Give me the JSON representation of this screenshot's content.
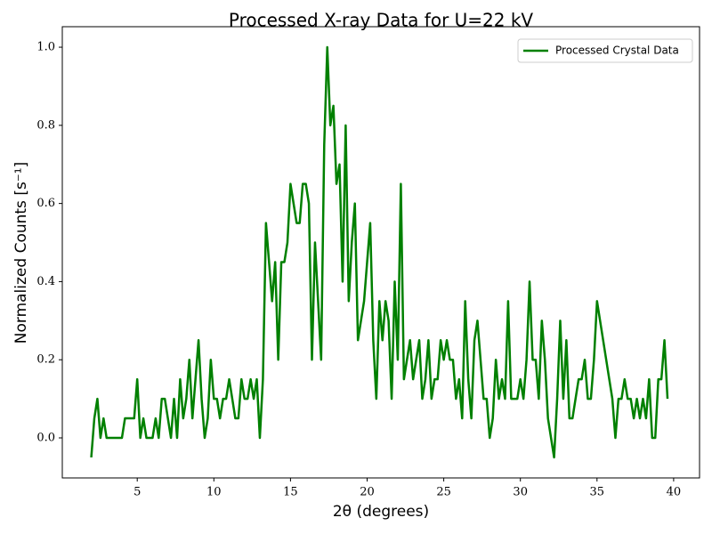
{
  "chart_data": {
    "type": "line",
    "title": "Processed X-ray Data for U=22 kV",
    "x_label": "2θ (degrees)",
    "y_label": "Normalized Counts [s⁻¹]",
    "legend": "upper right",
    "x": [
      2,
      2.2,
      2.4,
      2.6,
      2.8,
      3,
      3.2,
      3.4,
      3.6,
      3.8,
      4,
      4.2,
      4.4,
      4.6,
      4.8,
      5,
      5.2,
      5.4,
      5.6,
      5.8,
      6,
      6.2,
      6.4,
      6.6,
      6.8,
      7,
      7.2,
      7.4,
      7.6,
      7.8,
      8,
      8.2,
      8.4,
      8.6,
      8.8,
      9,
      9.2,
      9.4,
      9.6,
      9.8,
      10,
      10.2,
      10.4,
      10.6,
      10.8,
      11,
      11.2,
      11.4,
      11.6,
      11.8,
      12,
      12.2,
      12.4,
      12.6,
      12.8,
      13,
      13.2,
      13.4,
      13.6,
      13.8,
      14,
      14.2,
      14.4,
      14.6,
      14.8,
      15,
      15.2,
      15.4,
      15.6,
      15.8,
      16,
      16.2,
      16.4,
      16.6,
      16.8,
      17,
      17.2,
      17.4,
      17.6,
      17.8,
      18,
      18.2,
      18.4,
      18.6,
      18.8,
      19,
      19.2,
      19.4,
      19.6,
      19.8,
      20,
      20.2,
      20.4,
      20.6,
      20.8,
      21,
      21.2,
      21.4,
      21.6,
      21.8,
      22,
      22.2,
      22.4,
      22.6,
      22.8,
      23,
      23.2,
      23.4,
      23.6,
      23.8,
      24,
      24.2,
      24.4,
      24.6,
      24.8,
      25,
      25.2,
      25.4,
      25.6,
      25.8,
      26,
      26.2,
      26.4,
      26.6,
      26.8,
      27,
      27.2,
      27.4,
      27.6,
      27.8,
      28,
      28.2,
      28.4,
      28.6,
      28.8,
      29,
      29.2,
      29.4,
      29.6,
      29.8,
      30,
      30.2,
      30.4,
      30.6,
      30.8,
      31,
      31.2,
      31.4,
      31.6,
      31.8,
      32,
      32.2,
      32.4,
      32.6,
      32.8,
      33,
      33.2,
      33.4,
      33.6,
      33.8,
      34,
      34.2,
      34.4,
      34.6,
      34.8,
      35,
      35.2,
      35.4,
      35.6,
      35.8,
      36,
      36.2,
      36.4,
      36.6,
      36.8,
      37,
      37.2,
      37.4,
      37.6,
      37.8,
      38,
      38.2,
      38.4,
      38.6,
      38.8,
      39,
      39.2,
      39.4,
      39.6
    ],
    "series": [
      {
        "name": "Processed Crystal Data",
        "color": "#008000",
        "values": [
          -0.05,
          0.05,
          0.1,
          0,
          0.05,
          0,
          0,
          0,
          0,
          0,
          0,
          0.05,
          0.05,
          0.05,
          0.05,
          0.15,
          0,
          0.05,
          0,
          0,
          0,
          0.05,
          0,
          0.1,
          0.1,
          0.05,
          0,
          0.1,
          0,
          0.15,
          0.05,
          0.1,
          0.2,
          0.05,
          0.15,
          0.25,
          0.1,
          0,
          0.05,
          0.2,
          0.1,
          0.1,
          0.05,
          0.1,
          0.1,
          0.15,
          0.1,
          0.05,
          0.05,
          0.15,
          0.1,
          0.1,
          0.15,
          0.1,
          0.15,
          0,
          0.15,
          0.55,
          0.45,
          0.35,
          0.45,
          0.2,
          0.45,
          0.45,
          0.5,
          0.65,
          0.6,
          0.55,
          0.55,
          0.65,
          0.65,
          0.6,
          0.2,
          0.5,
          0.35,
          0.2,
          0.75,
          1.0,
          0.8,
          0.85,
          0.65,
          0.7,
          0.4,
          0.8,
          0.35,
          0.5,
          0.6,
          0.25,
          0.3,
          0.35,
          0.45,
          0.55,
          0.25,
          0.1,
          0.35,
          0.25,
          0.35,
          0.3,
          0.1,
          0.4,
          0.2,
          0.65,
          0.15,
          0.2,
          0.25,
          0.15,
          0.2,
          0.25,
          0.1,
          0.15,
          0.25,
          0.1,
          0.15,
          0.15,
          0.25,
          0.2,
          0.25,
          0.2,
          0.2,
          0.1,
          0.15,
          0.05,
          0.35,
          0.15,
          0.05,
          0.25,
          0.3,
          0.2,
          0.1,
          0.1,
          0,
          0.05,
          0.2,
          0.1,
          0.15,
          0.1,
          0.35,
          0.1,
          0.1,
          0.1,
          0.15,
          0.1,
          0.2,
          0.4,
          0.2,
          0.2,
          0.1,
          0.3,
          0.2,
          0.05,
          0,
          -0.05,
          0.1,
          0.3,
          0.1,
          0.25,
          0.05,
          0.05,
          0.1,
          0.15,
          0.15,
          0.2,
          0.1,
          0.1,
          0.2,
          0.35,
          0.3,
          0.25,
          0.2,
          0.15,
          0.1,
          0,
          0.1,
          0.1,
          0.15,
          0.1,
          0.1,
          0.05,
          0.1,
          0.05,
          0.1,
          0.05,
          0.15,
          0,
          0,
          0.15,
          0.15,
          0.25,
          0.1
        ]
      }
    ],
    "xlim": [
      0.11,
      41.69
    ],
    "ylim": [
      -0.1025,
      1.0525
    ],
    "xticks": [
      5,
      10,
      15,
      20,
      25,
      30,
      35,
      40
    ],
    "yticks": [
      {
        "value": 0,
        "label": "0.0"
      },
      0.2,
      0.4,
      0.6,
      0.8,
      {
        "value": 1,
        "label": "1.0"
      }
    ],
    "grid": false
  }
}
